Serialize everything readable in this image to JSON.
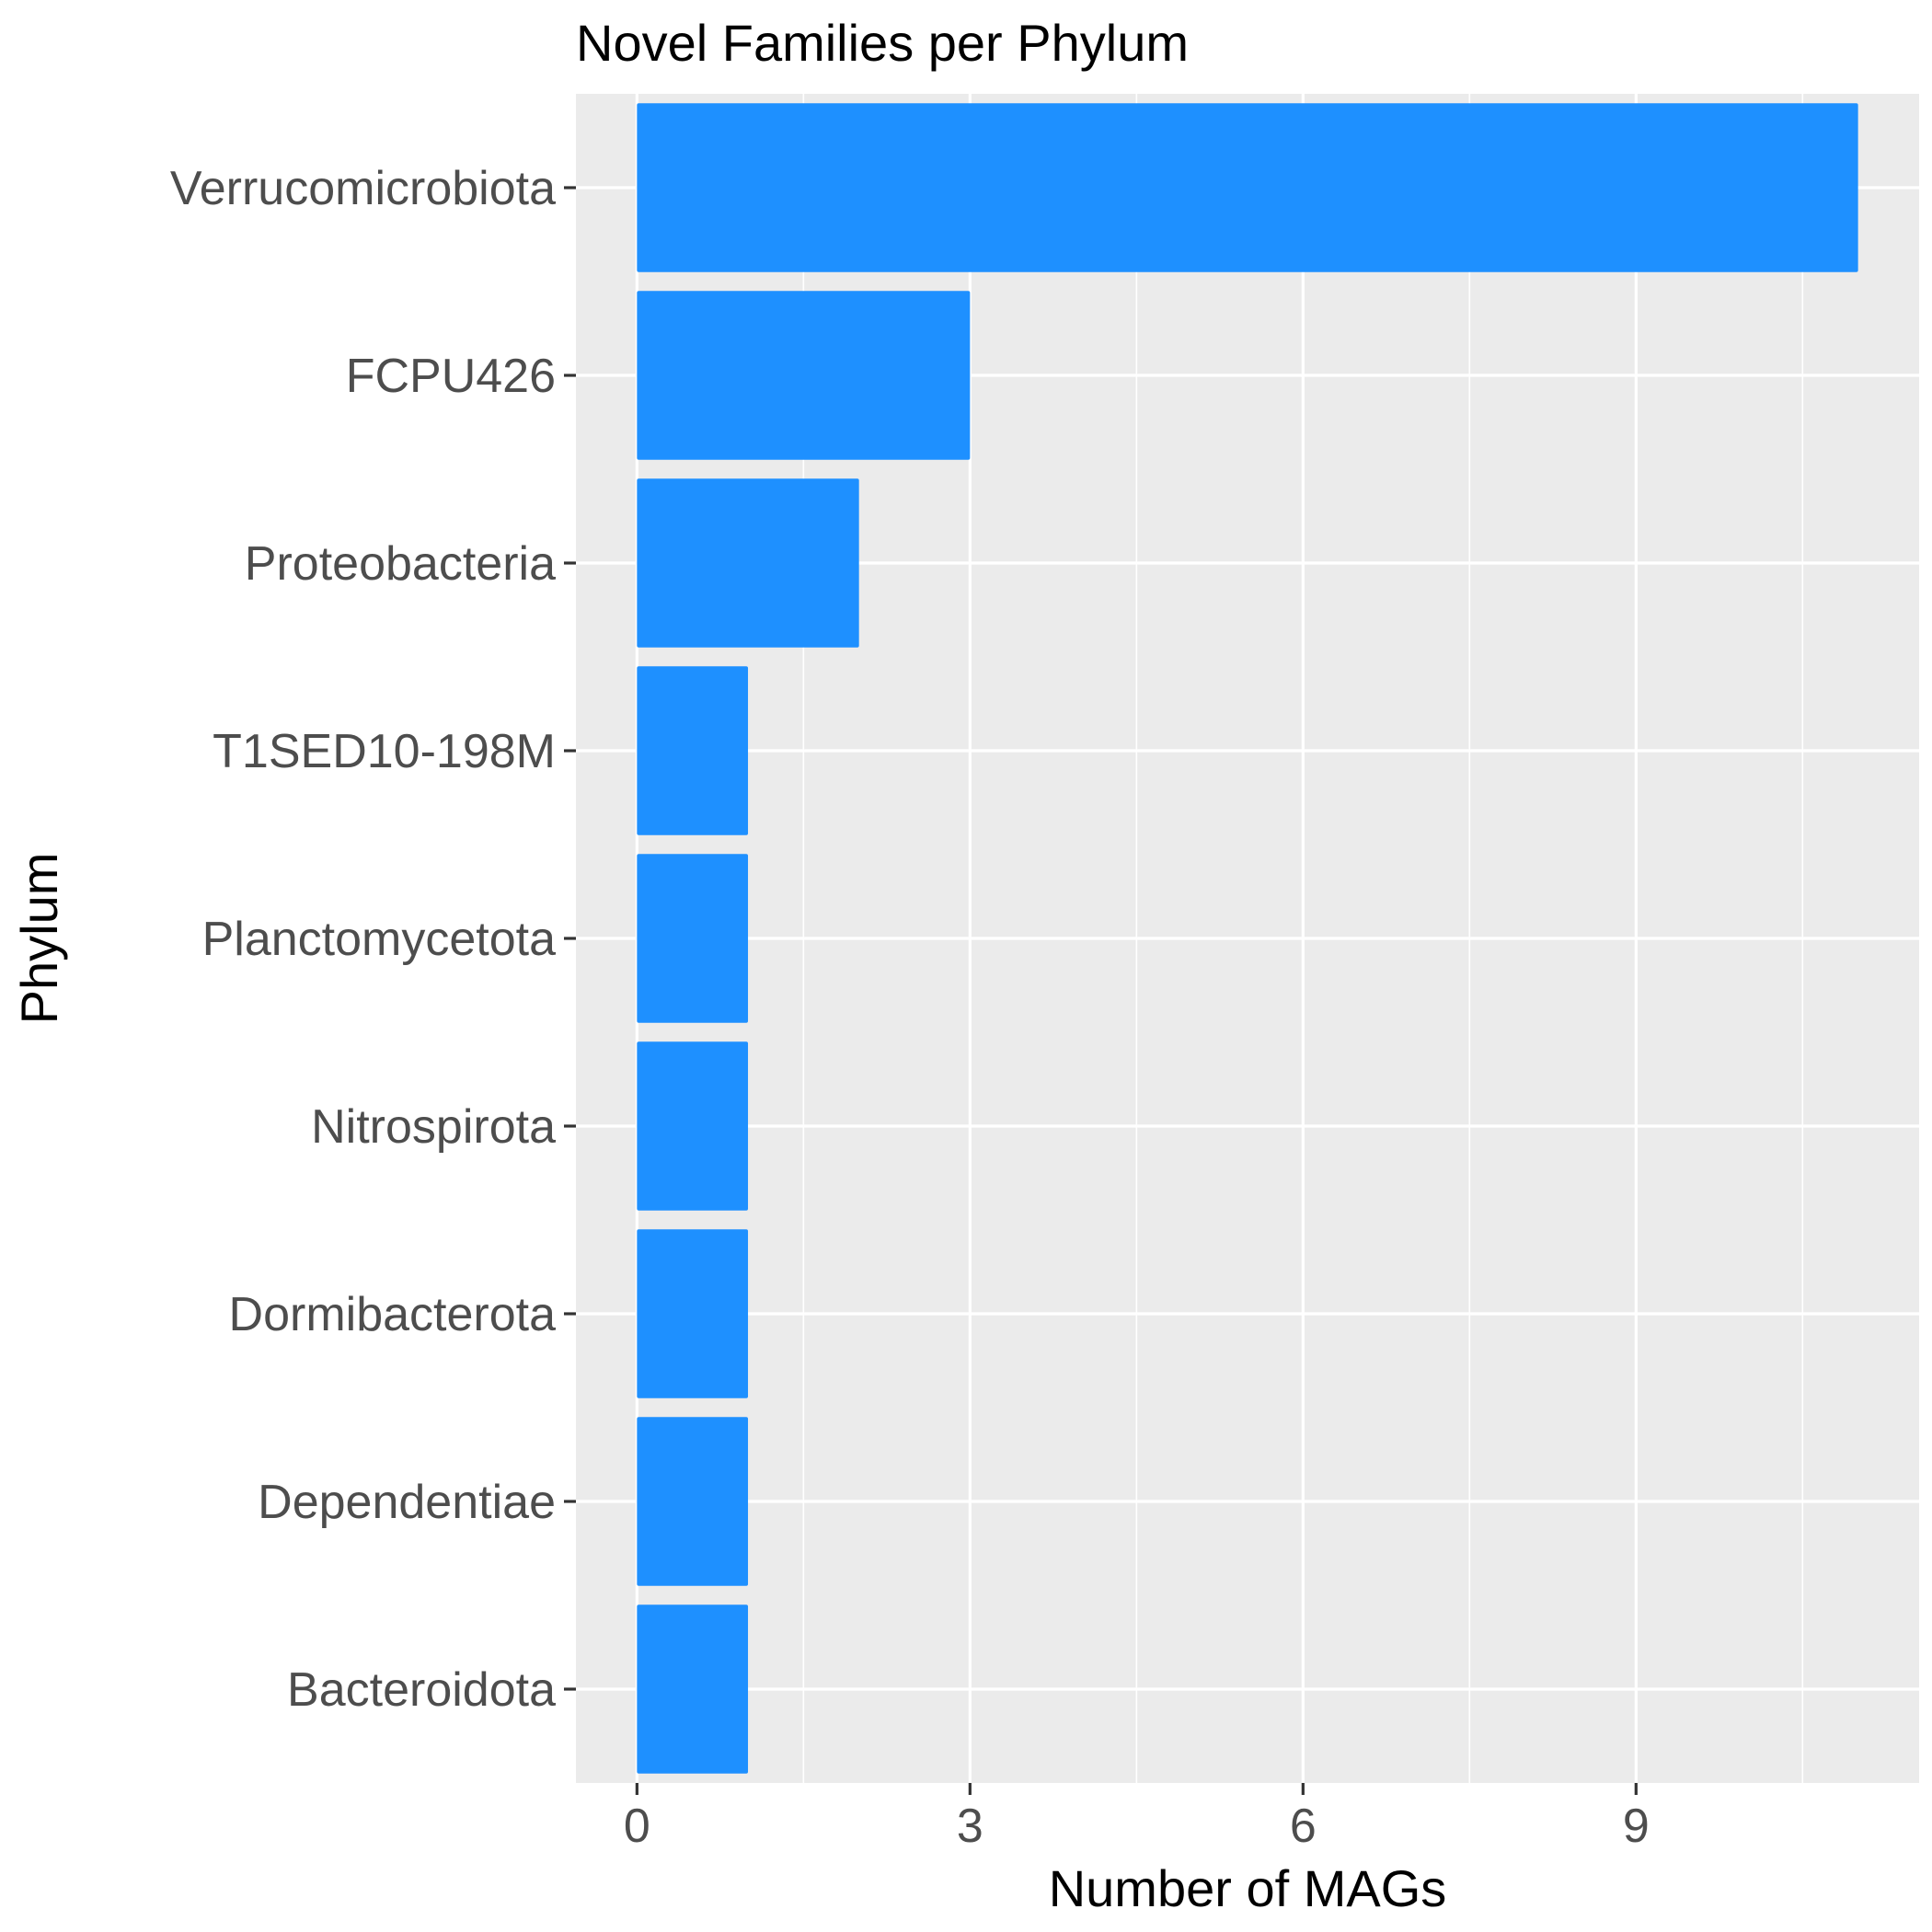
{
  "chart_data": {
    "type": "bar",
    "orientation": "horizontal",
    "title": "Novel Families per Phylum",
    "xlabel": "Number of MAGs",
    "ylabel": "Phylum",
    "categories": [
      "Verrucomicrobiota",
      "FCPU426",
      "Proteobacteria",
      "T1SED10-198M",
      "Planctomycetota",
      "Nitrospirota",
      "Dormibacterota",
      "Dependentiae",
      "Bacteroidota"
    ],
    "values": [
      11,
      3,
      2,
      1,
      1,
      1,
      1,
      1,
      1
    ],
    "xlim": [
      -0.55,
      11.55
    ],
    "xticks": [
      0,
      3,
      6,
      9
    ],
    "xtick_labels": [
      "0",
      "3",
      "6",
      "9"
    ],
    "grid": true,
    "colors": {
      "bar": "#1E90FF",
      "panel_background": "#EBEBEB",
      "grid": "#FFFFFF",
      "tick_label": "#4D4D4D"
    }
  }
}
